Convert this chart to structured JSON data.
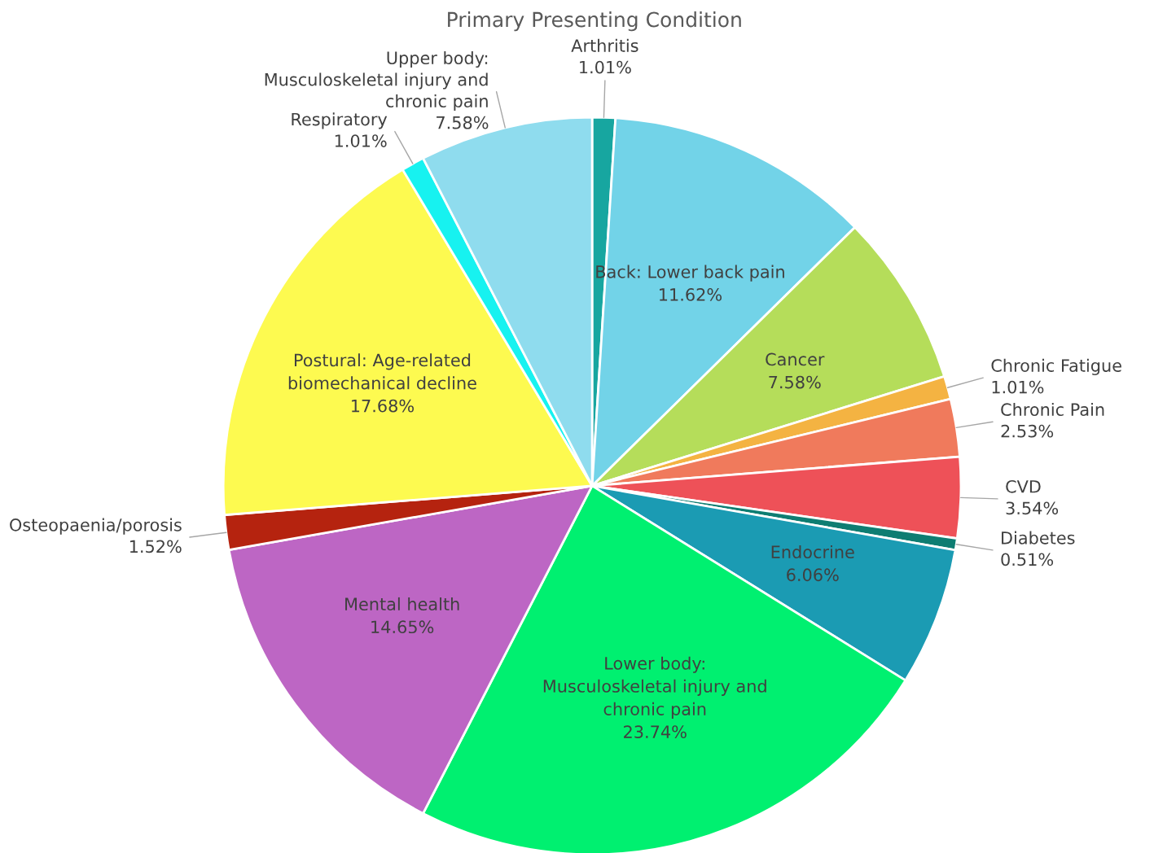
{
  "chart_data": {
    "type": "pie",
    "title": "Primary Presenting Condition",
    "categories": [
      "Arthritis",
      "Back: Lower back pain",
      "Cancer",
      "Chronic Fatigue",
      "Chronic Pain",
      "CVD",
      "Diabetes",
      "Endocrine",
      "Lower body:\nMusculoskeletal injury and\nchronic pain",
      "Mental health",
      "Osteopaenia/porosis",
      "Postural: Age-related\nbiomechanical decline",
      "Respiratory",
      "Upper body:\nMusculoskeletal injury and\nchronic pain"
    ],
    "values": [
      1.01,
      11.62,
      7.58,
      1.01,
      2.53,
      3.54,
      0.51,
      6.06,
      23.74,
      14.65,
      1.52,
      17.68,
      1.01,
      7.58
    ],
    "value_labels": [
      "1.01%",
      "11.62%",
      "7.58%",
      "1.01%",
      "2.53%",
      "3.54%",
      "0.51%",
      "6.06%",
      "23.74%",
      "14.65%",
      "1.52%",
      "17.68%",
      "1.01%",
      "7.58%"
    ],
    "colors": [
      "#17a6a0",
      "#72d3e8",
      "#b5dd5a",
      "#f4b342",
      "#f07a5c",
      "#ee5158",
      "#0e7d72",
      "#1b9bb3",
      "#00f070",
      "#bd66c4",
      "#b5230f",
      "#fdfa50",
      "#17f2f0",
      "#8fdcee"
    ]
  }
}
